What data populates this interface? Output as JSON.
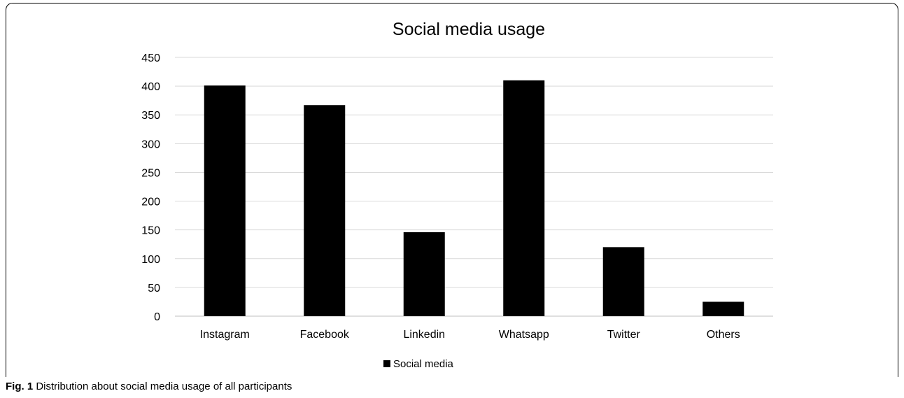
{
  "chart_data": {
    "type": "bar",
    "title": "Social media usage",
    "categories": [
      "Instagram",
      "Facebook",
      "Linkedin",
      "Whatsapp",
      "Twitter",
      "Others"
    ],
    "series": [
      {
        "name": "Social media",
        "values": [
          401,
          367,
          146,
          410,
          120,
          25
        ]
      }
    ],
    "xlabel": "",
    "ylabel": "",
    "ylim": [
      0,
      450
    ],
    "yticks": [
      0,
      50,
      100,
      150,
      200,
      250,
      300,
      350,
      400,
      450
    ],
    "grid": true,
    "legend": "bottom-center",
    "bar_color": "#000000",
    "grid_color": "#d9d9d9"
  },
  "caption": {
    "label": "Fig. 1",
    "text": " Distribution about social media usage of all participants"
  }
}
